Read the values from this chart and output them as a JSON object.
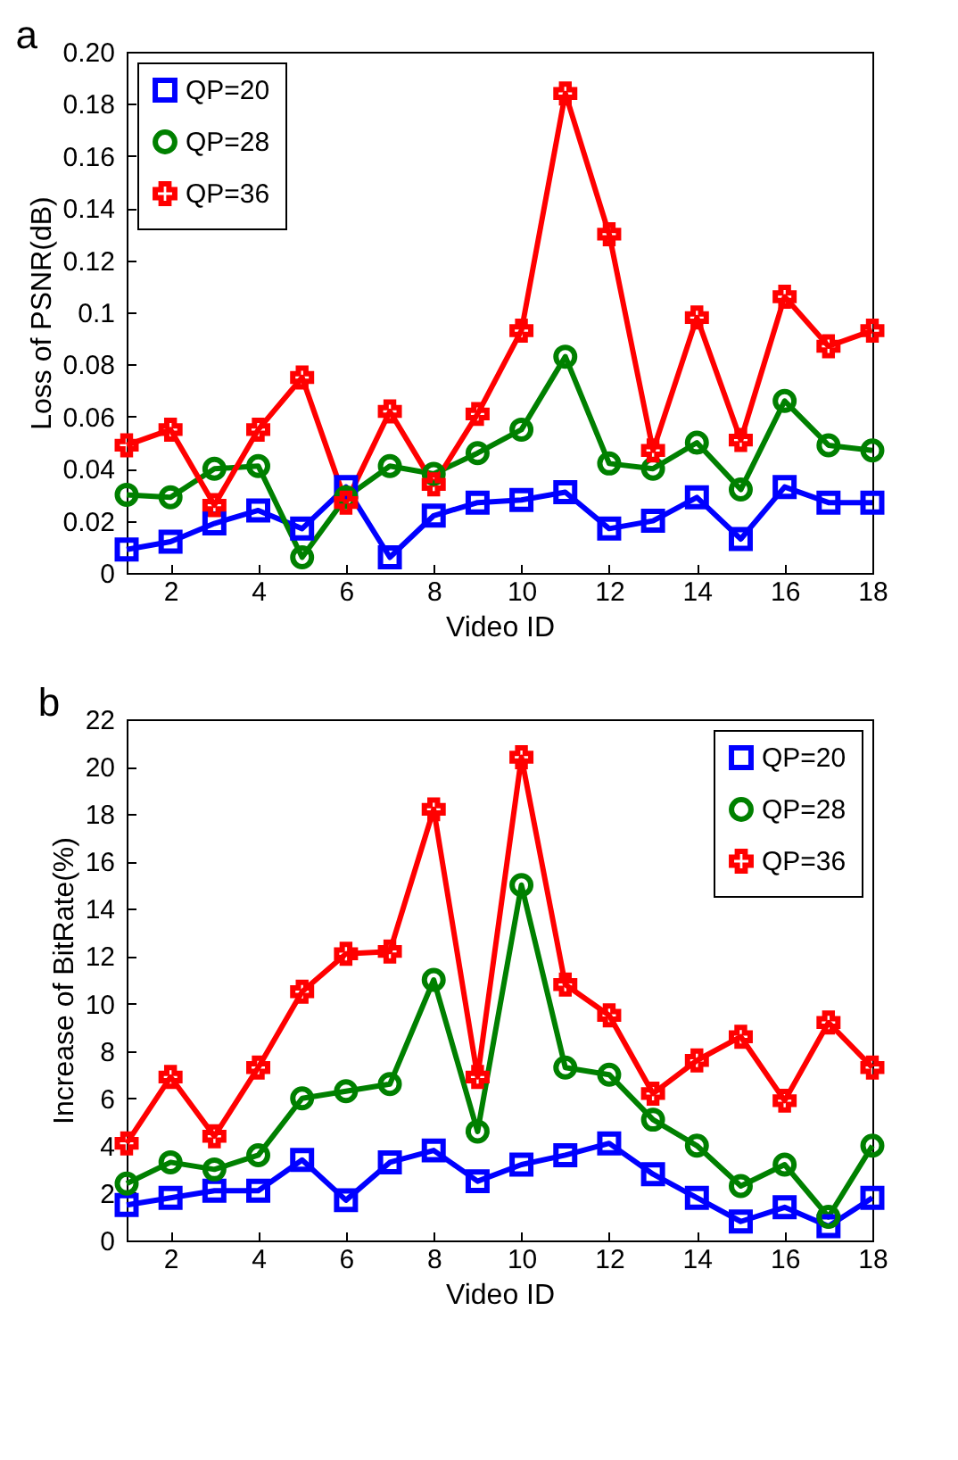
{
  "chart_data": [
    {
      "type": "line",
      "title": "a",
      "xlabel": "Video ID",
      "ylabel": "Loss of PSNR(dB)",
      "x": [
        1,
        2,
        3,
        4,
        5,
        6,
        7,
        8,
        9,
        10,
        11,
        12,
        13,
        14,
        15,
        16,
        17,
        18
      ],
      "xlim": [
        1,
        18
      ],
      "xticks": [
        2,
        4,
        6,
        8,
        10,
        12,
        14,
        16,
        18
      ],
      "ylim": [
        0,
        0.2
      ],
      "yticks": [
        0,
        0.02,
        0.04,
        0.06,
        0.08,
        0.1,
        0.12,
        0.14,
        0.16,
        0.18,
        {
          "value": 0.2,
          "label": "0.20"
        }
      ],
      "legend": "top left",
      "grid": false,
      "line_style": "solid",
      "series": [
        {
          "name": "QP=20",
          "color": "#0000ff",
          "marker": "square",
          "values": [
            0.009,
            0.012,
            0.019,
            0.024,
            0.017,
            0.033,
            0.006,
            0.022,
            0.027,
            0.028,
            0.031,
            0.017,
            0.02,
            0.029,
            0.013,
            0.033,
            0.027,
            0.027
          ]
        },
        {
          "name": "QP=28",
          "color": "#008000",
          "marker": "circle",
          "values": [
            0.03,
            0.029,
            0.04,
            0.041,
            0.006,
            0.029,
            0.041,
            0.038,
            0.046,
            0.055,
            0.083,
            0.042,
            0.04,
            0.05,
            0.032,
            0.066,
            0.049,
            0.047
          ]
        },
        {
          "name": "QP=36",
          "color": "#ff0000",
          "marker": "cross",
          "values": [
            0.049,
            0.055,
            0.026,
            0.055,
            0.075,
            0.027,
            0.062,
            0.034,
            0.061,
            0.093,
            0.184,
            0.13,
            0.047,
            0.098,
            0.051,
            0.106,
            0.087,
            0.093
          ]
        }
      ]
    },
    {
      "type": "line",
      "title": "b",
      "xlabel": "Video ID",
      "ylabel": "Increase of BitRate(%)",
      "x": [
        1,
        2,
        3,
        4,
        5,
        6,
        7,
        8,
        9,
        10,
        11,
        12,
        13,
        14,
        15,
        16,
        17,
        18
      ],
      "xlim": [
        1,
        18
      ],
      "xticks": [
        2,
        4,
        6,
        8,
        10,
        12,
        14,
        16,
        18
      ],
      "ylim": [
        0,
        22
      ],
      "yticks": [
        0,
        2,
        4,
        6,
        8,
        10,
        12,
        14,
        16,
        18,
        20,
        22
      ],
      "legend": "top right",
      "grid": false,
      "line_style": "solid",
      "series": [
        {
          "name": "QP=20",
          "color": "#0000ff",
          "marker": "square",
          "values": [
            1.5,
            1.8,
            2.1,
            2.1,
            3.4,
            1.7,
            3.3,
            3.8,
            2.5,
            3.2,
            3.6,
            4.1,
            2.8,
            1.8,
            0.8,
            1.4,
            0.6,
            1.8
          ]
        },
        {
          "name": "QP=28",
          "color": "#008000",
          "marker": "circle",
          "values": [
            2.4,
            3.3,
            3.0,
            3.6,
            6.0,
            6.3,
            6.6,
            11.0,
            4.6,
            15.0,
            7.3,
            7.0,
            5.1,
            4.0,
            2.3,
            3.2,
            1.0,
            4.0
          ]
        },
        {
          "name": "QP=36",
          "color": "#ff0000",
          "marker": "cross",
          "values": [
            4.1,
            6.9,
            4.4,
            7.3,
            10.5,
            12.1,
            12.2,
            18.2,
            6.9,
            20.4,
            10.8,
            9.5,
            6.2,
            7.6,
            8.6,
            5.9,
            9.2,
            7.3
          ]
        }
      ]
    }
  ]
}
